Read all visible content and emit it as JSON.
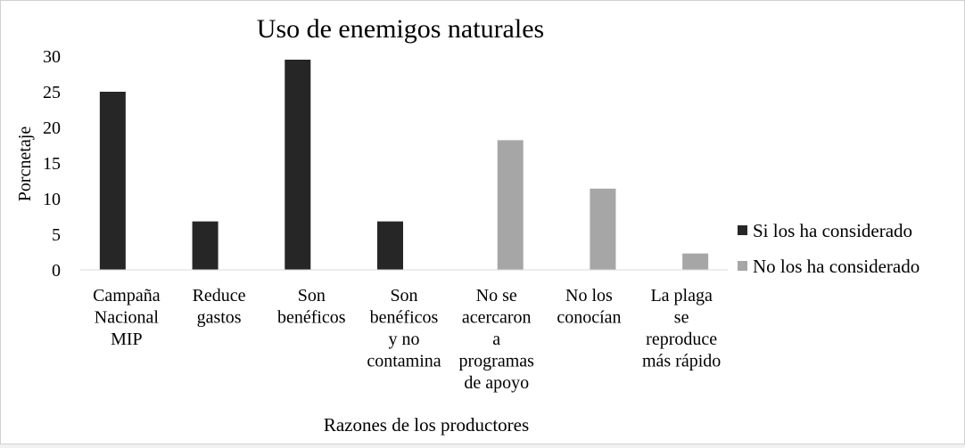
{
  "chart_data": {
    "type": "bar",
    "title": "Uso de enemigos naturales",
    "xlabel": "Razones de los productores",
    "ylabel": "Porcnetaje",
    "ylim": [
      0,
      30
    ],
    "yticks": [
      0,
      5,
      10,
      15,
      20,
      25,
      30
    ],
    "grid": false,
    "legend_position": "right",
    "categories": [
      [
        "Campaña",
        "Nacional",
        "MIP"
      ],
      [
        "Reduce",
        "gastos"
      ],
      [
        "Son",
        "benéficos"
      ],
      [
        "Son",
        "benéficos",
        "y no",
        "contamina"
      ],
      [
        "No se",
        "acercaron",
        "a",
        "programas",
        "de apoyo"
      ],
      [
        "No los",
        "conocían"
      ],
      [
        "La plaga",
        "se",
        "reproduce",
        "más rápido"
      ]
    ],
    "series": [
      {
        "name": "Si los ha considerado",
        "color": "#262626",
        "values": [
          25,
          6.8,
          29.5,
          6.8,
          0,
          0,
          0
        ]
      },
      {
        "name": "No los ha considerado",
        "color": "#a6a6a6",
        "values": [
          0,
          0,
          0,
          0,
          18.2,
          11.4,
          2.3
        ]
      }
    ]
  }
}
